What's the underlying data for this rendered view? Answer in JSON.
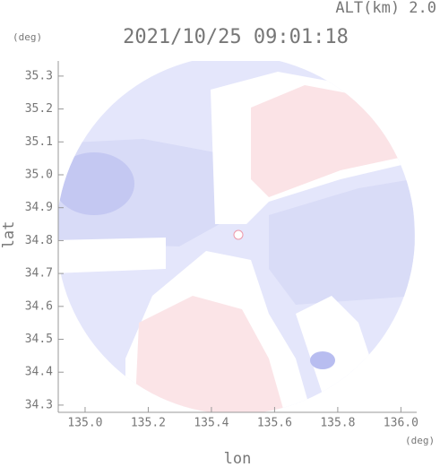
{
  "chart_data": {
    "type": "radar-map",
    "title": "2021/10/25 09:01:18",
    "subtitle": "ALT(km) 2.0",
    "x_label": "lon",
    "y_label": "lat",
    "x_unit": "(deg)",
    "y_unit": "(deg)",
    "xlim": [
      134.915,
      136.05
    ],
    "ylim": [
      34.278,
      35.346
    ],
    "xticks": [
      {
        "value": 135,
        "label": "135.0"
      },
      135.2,
      135.4,
      135.6,
      135.8,
      {
        "value": 136,
        "label": "136.0"
      }
    ],
    "yticks": [
      34.3,
      34.4,
      34.5,
      34.6,
      34.7,
      34.8,
      34.9,
      {
        "value": 35,
        "label": "35.0"
      },
      35.1,
      35.2,
      35.3
    ]
  }
}
